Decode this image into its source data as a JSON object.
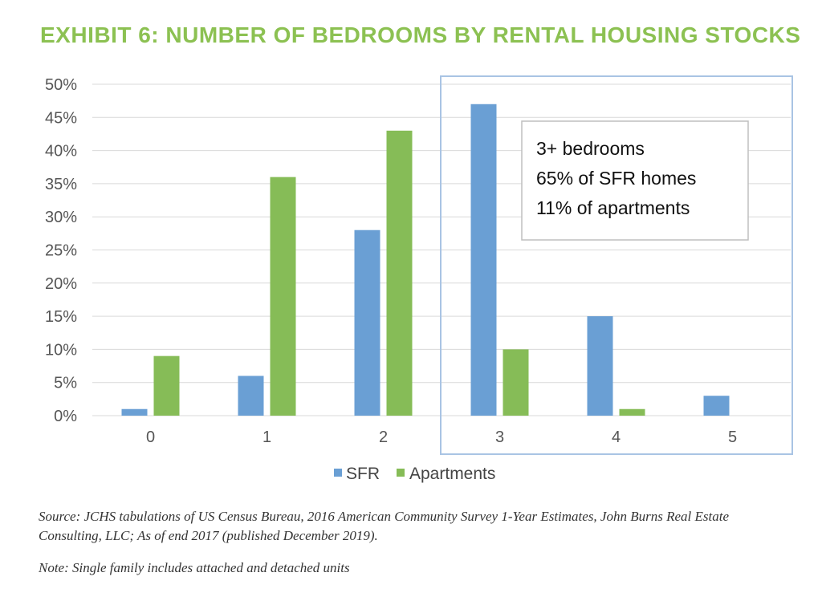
{
  "title": "EXHIBIT 6: NUMBER OF BEDROOMS BY RENTAL HOUSING STOCKS",
  "colors": {
    "title": "#8cc152",
    "SFR": "#6a9fd4",
    "Apartments": "#86bc57",
    "highlight_box": "#a9c4e4",
    "grid": "#d9d9d9"
  },
  "chart_data": {
    "type": "bar",
    "categories": [
      "0",
      "1",
      "2",
      "3",
      "4",
      "5"
    ],
    "series": [
      {
        "name": "SFR",
        "values": [
          1,
          6,
          28,
          47,
          15,
          3
        ]
      },
      {
        "name": "Apartments",
        "values": [
          9,
          36,
          43,
          10,
          1,
          0
        ]
      }
    ],
    "ylim": [
      0,
      50
    ],
    "yticks": [
      "0%",
      "5%",
      "10%",
      "15%",
      "20%",
      "25%",
      "30%",
      "35%",
      "40%",
      "45%",
      "50%"
    ],
    "y_tick_values": [
      0,
      5,
      10,
      15,
      20,
      25,
      30,
      35,
      40,
      45,
      50
    ],
    "grid": true,
    "legend_position": "bottom",
    "highlight_categories": [
      "3",
      "4",
      "5"
    ],
    "annotation": [
      "3+ bedrooms",
      "65% of SFR homes",
      "11% of apartments"
    ]
  },
  "source": "Source: JCHS tabulations of US Census Bureau, 2016 American Community Survey 1-Year Estimates, John Burns Real Estate Consulting, LLC; As of end 2017 (published December 2019).",
  "note": "Note: Single family includes attached and detached units"
}
